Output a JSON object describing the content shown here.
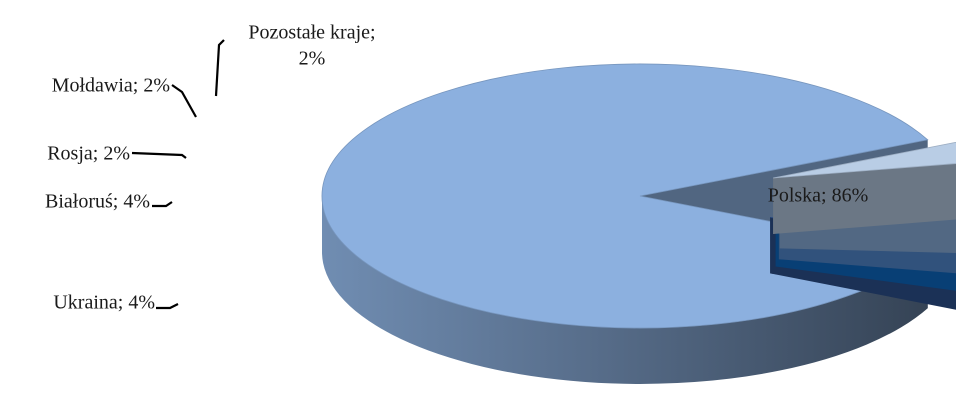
{
  "chart_data": {
    "type": "pie",
    "style": "3d-exploded",
    "legend": "none",
    "categories": [
      "Polska",
      "Ukraina",
      "Białoruś",
      "Rosja",
      "Mołdawia",
      "Pozostałe kraje"
    ],
    "values": [
      86,
      4,
      4,
      2,
      2,
      2
    ],
    "unit": "%",
    "exploded": [
      false,
      true,
      true,
      true,
      true,
      true
    ],
    "colors": [
      "#8cb0df",
      "#b9cde5",
      "#8db3e2",
      "#558ed5",
      "#0e6cc9",
      "#2e5494"
    ],
    "labels": [
      [
        "Polska; 86%"
      ],
      [
        "Ukraina; 4%"
      ],
      [
        "Białoruś; 4%"
      ],
      [
        "Rosja; 2%"
      ],
      [
        "Mołdawia; 2%"
      ],
      [
        "Pozostałe kraje;",
        "2%"
      ]
    ]
  }
}
